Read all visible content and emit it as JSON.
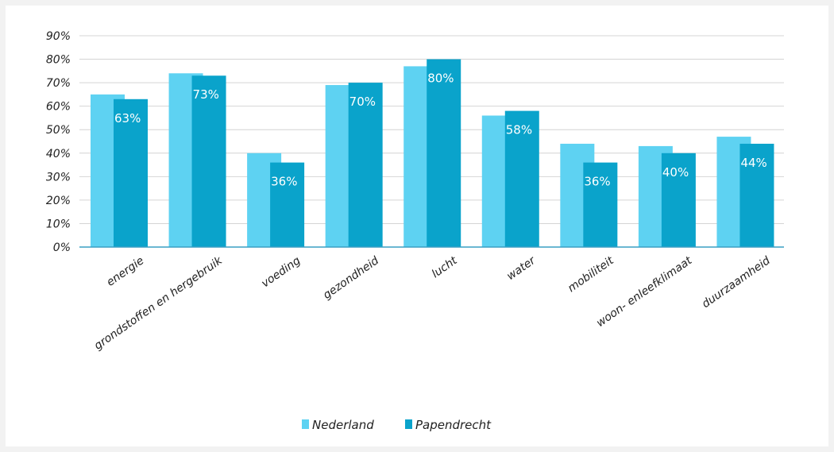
{
  "chart_data": {
    "type": "bar",
    "categories": [
      "energie",
      "grondstoffen en hergebruik",
      "voeding",
      "gezondheid",
      "lucht",
      "water",
      "mobiliteit",
      "woon- enleefklimaat",
      "duurzaamheid"
    ],
    "series": [
      {
        "name": "Nederland",
        "values": [
          65,
          74,
          40,
          69,
          77,
          56,
          44,
          43,
          47
        ],
        "color": "#5ed2f2"
      },
      {
        "name": "Papendrecht",
        "values": [
          63,
          73,
          36,
          70,
          80,
          58,
          36,
          40,
          44
        ],
        "color": "#0aa3cb"
      }
    ],
    "data_labels": [
      "63%",
      "73%",
      "36%",
      "70%",
      "80%",
      "58%",
      "36%",
      "40%",
      "44%"
    ],
    "yticks": [
      "0%",
      "10%",
      "20%",
      "30%",
      "40%",
      "50%",
      "60%",
      "70%",
      "80%",
      "90%"
    ],
    "ylim": [
      0,
      90
    ],
    "grid": true,
    "legend_position": "bottom-center",
    "title": "",
    "xlabel": "",
    "ylabel": ""
  }
}
